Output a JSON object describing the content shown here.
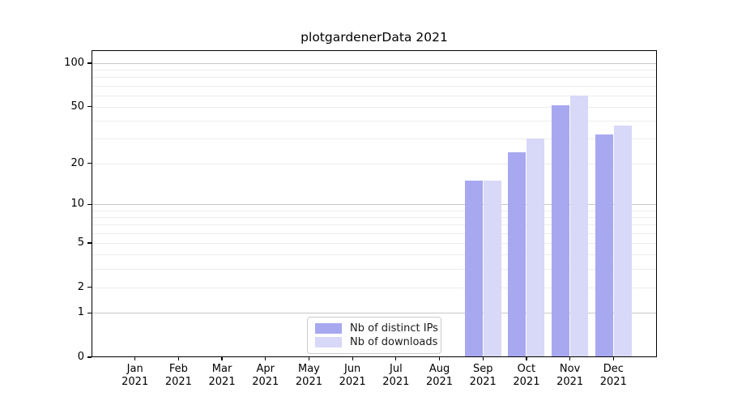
{
  "chart_data": {
    "type": "bar",
    "title": "plotgardenerData 2021",
    "year_line": "2021",
    "categories": [
      "Jan",
      "Feb",
      "Mar",
      "Apr",
      "May",
      "Jun",
      "Jul",
      "Aug",
      "Sep",
      "Oct",
      "Nov",
      "Dec"
    ],
    "series": [
      {
        "name": "Nb of distinct IPs",
        "color": "#a8a8f0",
        "values": [
          0,
          0,
          0,
          0,
          0,
          0,
          0,
          0,
          15,
          24,
          51,
          32
        ]
      },
      {
        "name": "Nb of downloads",
        "color": "#d8d8f8",
        "values": [
          0,
          0,
          0,
          0,
          0,
          0,
          0,
          0,
          15,
          30,
          60,
          37
        ]
      }
    ],
    "y_scale": "log1p",
    "y_ticks": [
      0,
      1,
      2,
      5,
      10,
      20,
      50,
      100
    ],
    "y_minor_gridlines": [
      2,
      3,
      4,
      5,
      6,
      7,
      8,
      9,
      20,
      30,
      40,
      50,
      60,
      70,
      80,
      90
    ],
    "y_major_gridlines": [
      1,
      10,
      100
    ],
    "ylim": [
      0,
      120
    ],
    "grid": "on",
    "legend_position": "bottom-center",
    "colors": {
      "axis": "#000000",
      "major_grid": "#c8c8c8",
      "minor_grid": "#ededed",
      "legend_border": "#cccccc",
      "background": "#ffffff"
    }
  }
}
